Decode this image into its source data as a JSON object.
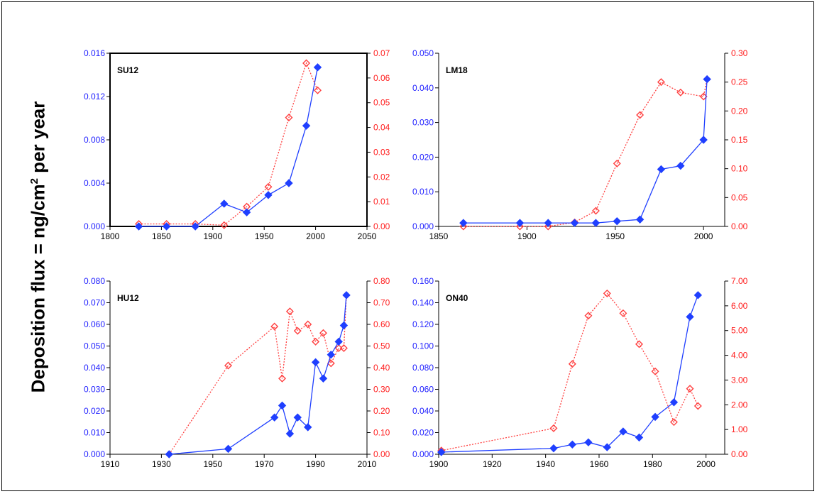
{
  "ylabel": {
    "prefix": "Deposition flux = ng/cm",
    "sup": "2",
    "suffix": " per year"
  },
  "colors": {
    "left_axis": "#1f1fff",
    "right_axis": "#ff2020",
    "blue_series": "#1f3fff",
    "red_series": "#ff4040"
  },
  "chart_data": [
    {
      "type": "line",
      "title": "SU12",
      "x_ticks": [
        "1800",
        "1850",
        "1900",
        "1950",
        "2000",
        "2050"
      ],
      "xlim": [
        1800,
        2050
      ],
      "y_left_ticks": [
        "0.000",
        "0.004",
        "0.008",
        "0.012",
        "0.016"
      ],
      "ylim_left": [
        0,
        0.016
      ],
      "y_right_ticks": [
        "0.00",
        "0.01",
        "0.02",
        "0.03",
        "0.04",
        "0.05",
        "0.06",
        "0.07"
      ],
      "ylim_right": [
        0,
        0.07
      ],
      "series": [
        {
          "axis": "left",
          "marker": "filled-diamond",
          "style": "solid",
          "x": [
            1828,
            1855,
            1883,
            1911,
            1933,
            1954,
            1974,
            1991,
            2002
          ],
          "y": [
            0.0,
            0.0,
            0.0,
            0.0021,
            0.0013,
            0.0029,
            0.004,
            0.0093,
            0.0147
          ]
        },
        {
          "axis": "right",
          "marker": "open-diamond",
          "style": "dotted",
          "x": [
            1828,
            1855,
            1883,
            1911,
            1933,
            1954,
            1974,
            1991,
            2002
          ],
          "y": [
            0.001,
            0.001,
            0.001,
            0.0005,
            0.008,
            0.016,
            0.044,
            0.066,
            0.055
          ]
        }
      ]
    },
    {
      "type": "line",
      "title": "LM18",
      "x_ticks": [
        "1850",
        "1900",
        "1950",
        "2000"
      ],
      "xlim": [
        1850,
        2012
      ],
      "y_left_ticks": [
        "0.000",
        "0.010",
        "0.020",
        "0.030",
        "0.040",
        "0.050"
      ],
      "ylim_left": [
        0,
        0.05
      ],
      "y_right_ticks": [
        "0.00",
        "0.05",
        "0.10",
        "0.15",
        "0.20",
        "0.25",
        "0.30"
      ],
      "ylim_right": [
        0,
        0.3
      ],
      "series": [
        {
          "axis": "left",
          "marker": "filled-diamond",
          "style": "solid",
          "x": [
            1864,
            1896,
            1912,
            1927,
            1939,
            1951,
            1964,
            1976,
            1987,
            2000,
            2002
          ],
          "y": [
            0.001,
            0.001,
            0.001,
            0.001,
            0.001,
            0.0015,
            0.002,
            0.0165,
            0.0175,
            0.025,
            0.0425
          ]
        },
        {
          "axis": "right",
          "marker": "open-diamond",
          "style": "dotted",
          "x": [
            1864,
            1896,
            1912,
            1927,
            1939,
            1951,
            1964,
            1976,
            1987,
            2000,
            2002
          ],
          "y": [
            0.0,
            0.0,
            0.0,
            0.007,
            0.027,
            0.109,
            0.193,
            0.25,
            0.232,
            0.225,
            0.255
          ]
        }
      ]
    },
    {
      "type": "line",
      "title": "HU12",
      "x_ticks": [
        "1910",
        "1930",
        "1950",
        "1970",
        "1990",
        "2010"
      ],
      "xlim": [
        1910,
        2010
      ],
      "y_left_ticks": [
        "0.000",
        "0.010",
        "0.020",
        "0.030",
        "0.040",
        "0.050",
        "0.060",
        "0.070",
        "0.080"
      ],
      "ylim_left": [
        0,
        0.08
      ],
      "y_right_ticks": [
        "0.00",
        "0.10",
        "0.20",
        "0.30",
        "0.40",
        "0.50",
        "0.60",
        "0.70",
        "0.80"
      ],
      "ylim_right": [
        0,
        0.8
      ],
      "series": [
        {
          "axis": "left",
          "marker": "filled-diamond",
          "style": "solid",
          "x": [
            1933,
            1956,
            1974,
            1977,
            1980,
            1983,
            1987,
            1990,
            1993,
            1996,
            1999,
            2001,
            2002
          ],
          "y": [
            0.0,
            0.0025,
            0.017,
            0.0225,
            0.0095,
            0.017,
            0.0125,
            0.0425,
            0.035,
            0.046,
            0.052,
            0.0595,
            0.0735
          ]
        },
        {
          "axis": "right",
          "marker": "open-diamond",
          "style": "dotted",
          "x": [
            1933,
            1956,
            1974,
            1977,
            1980,
            1983,
            1987,
            1990,
            1993,
            1996,
            1999,
            2001,
            2002
          ],
          "y": [
            0.0,
            0.41,
            0.59,
            0.35,
            0.66,
            0.57,
            0.6,
            0.52,
            0.56,
            0.42,
            0.49,
            0.49,
            0.735
          ]
        }
      ]
    },
    {
      "type": "line",
      "title": "ON40",
      "x_ticks": [
        "1900",
        "1920",
        "1940",
        "1960",
        "1980",
        "2000"
      ],
      "xlim": [
        1900,
        2007
      ],
      "y_left_ticks": [
        "0.000",
        "0.020",
        "0.040",
        "0.060",
        "0.080",
        "0.100",
        "0.120",
        "0.140",
        "0.160"
      ],
      "ylim_left": [
        0,
        0.16
      ],
      "y_right_ticks": [
        "0.00",
        "1.00",
        "2.00",
        "3.00",
        "4.00",
        "5.00",
        "6.00",
        "7.00"
      ],
      "ylim_right": [
        0,
        7
      ],
      "series": [
        {
          "axis": "left",
          "marker": "filled-diamond",
          "style": "solid",
          "x": [
            1901,
            1943,
            1950,
            1956,
            1963,
            1969,
            1975,
            1981,
            1988,
            1994,
            1997
          ],
          "y": [
            0.002,
            0.0055,
            0.009,
            0.011,
            0.0065,
            0.021,
            0.0155,
            0.0345,
            0.048,
            0.127,
            0.147
          ]
        },
        {
          "axis": "right",
          "marker": "open-diamond",
          "style": "dotted",
          "x": [
            1901,
            1943,
            1950,
            1956,
            1963,
            1969,
            1975,
            1981,
            1988,
            1994,
            1997
          ],
          "y": [
            0.15,
            1.05,
            3.65,
            5.6,
            6.5,
            5.7,
            4.45,
            3.35,
            1.3,
            2.65,
            1.95
          ]
        }
      ]
    }
  ]
}
